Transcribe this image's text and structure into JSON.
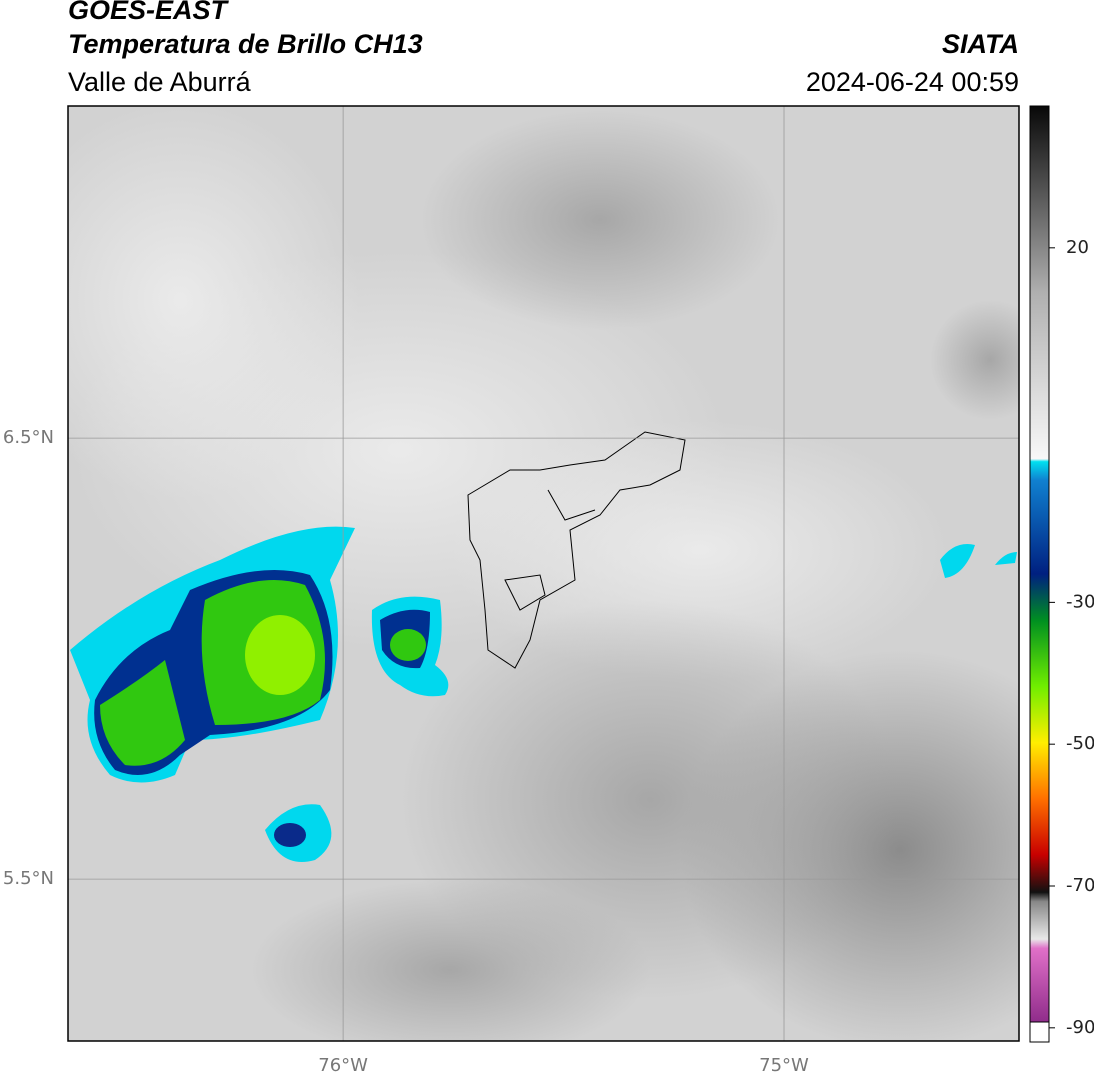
{
  "header": {
    "title": "GOES-EAST",
    "subtitle": "Temperatura de Brillo CH13",
    "region": "Valle de Aburrá",
    "source": "SIATA",
    "datetime": "2024-06-24 00:59"
  },
  "map": {
    "xlim": [
      -76.624,
      -74.467
    ],
    "ylim": [
      5.133,
      7.253
    ],
    "xticks": [
      {
        "value": -76,
        "label": "76°W"
      },
      {
        "value": -75,
        "label": "75°W"
      }
    ],
    "yticks": [
      {
        "value": 5.5,
        "label": "5.5°N"
      },
      {
        "value": 6.5,
        "label": "6.5°N"
      }
    ],
    "grid": true
  },
  "colorbar": {
    "lim": [
      -92,
      40
    ],
    "ticks": [
      20,
      -30,
      -50,
      -70,
      -90
    ]
  }
}
